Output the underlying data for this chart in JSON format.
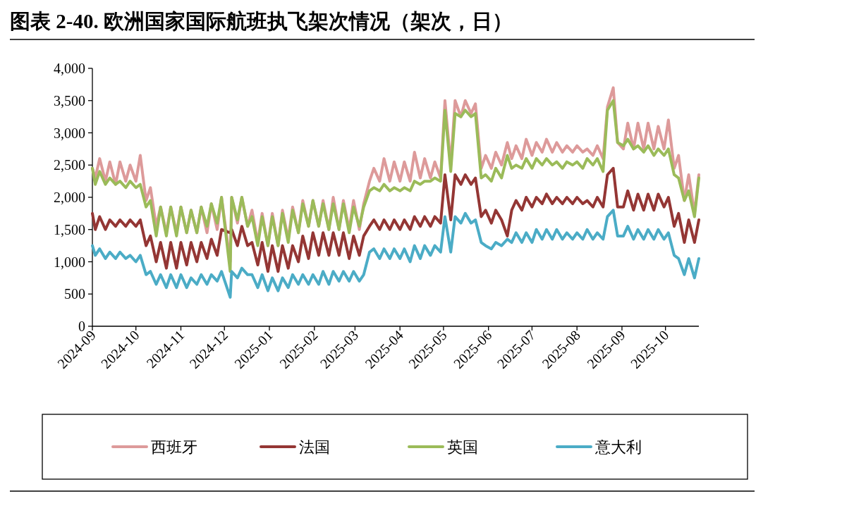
{
  "chart_data": {
    "type": "line",
    "title": "图表 2-40. 欧洲国家国际航班执飞架次情况（架次，日）",
    "x": [
      "2024-09-01",
      "2024-09-03",
      "2024-09-06",
      "2024-09-10",
      "2024-09-13",
      "2024-09-17",
      "2024-09-20",
      "2024-09-24",
      "2024-09-27",
      "2024-10-01",
      "2024-10-04",
      "2024-10-08",
      "2024-10-11",
      "2024-10-15",
      "2024-10-18",
      "2024-10-22",
      "2024-10-25",
      "2024-10-29",
      "2024-11-01",
      "2024-11-05",
      "2024-11-08",
      "2024-11-12",
      "2024-11-15",
      "2024-11-19",
      "2024-11-22",
      "2024-11-26",
      "2024-11-29",
      "2024-12-05",
      "2024-12-06",
      "2024-12-10",
      "2024-12-13",
      "2024-12-17",
      "2024-12-20",
      "2024-12-24",
      "2024-12-27",
      "2024-12-31",
      "2025-01-03",
      "2025-01-07",
      "2025-01-10",
      "2025-01-14",
      "2025-01-17",
      "2025-01-21",
      "2025-01-24",
      "2025-01-28",
      "2025-01-31",
      "2025-02-04",
      "2025-02-07",
      "2025-02-11",
      "2025-02-14",
      "2025-02-18",
      "2025-02-21",
      "2025-02-25",
      "2025-02-28",
      "2025-03-04",
      "2025-03-07",
      "2025-03-11",
      "2025-03-14",
      "2025-03-18",
      "2025-03-21",
      "2025-03-25",
      "2025-03-28",
      "2025-04-01",
      "2025-04-04",
      "2025-04-08",
      "2025-04-11",
      "2025-04-15",
      "2025-04-18",
      "2025-04-22",
      "2025-04-25",
      "2025-04-29",
      "2025-05-02",
      "2025-05-06",
      "2025-05-09",
      "2025-05-13",
      "2025-05-16",
      "2025-05-20",
      "2025-05-23",
      "2025-05-27",
      "2025-05-30",
      "2025-06-03",
      "2025-06-06",
      "2025-06-10",
      "2025-06-14",
      "2025-06-17",
      "2025-06-20",
      "2025-06-24",
      "2025-06-27",
      "2025-07-01",
      "2025-07-04",
      "2025-07-08",
      "2025-07-11",
      "2025-07-15",
      "2025-07-18",
      "2025-07-22",
      "2025-07-25",
      "2025-07-29",
      "2025-08-01",
      "2025-08-05",
      "2025-08-08",
      "2025-08-12",
      "2025-08-15",
      "2025-08-19",
      "2025-08-22",
      "2025-08-26",
      "2025-08-29",
      "2025-09-02",
      "2025-09-05",
      "2025-09-09",
      "2025-09-12",
      "2025-09-16",
      "2025-09-19",
      "2025-09-23",
      "2025-09-26",
      "2025-09-30",
      "2025-10-03",
      "2025-10-07",
      "2025-10-10",
      "2025-10-14",
      "2025-10-17",
      "2025-10-21",
      "2025-10-24"
    ],
    "series": [
      {
        "name": "西班牙",
        "color": "#dd9a9a",
        "values": [
          2450,
          2300,
          2600,
          2250,
          2550,
          2200,
          2550,
          2250,
          2500,
          2250,
          2650,
          1950,
          2150,
          1550,
          1850,
          1450,
          1850,
          1450,
          1850,
          1450,
          1800,
          1450,
          1850,
          1450,
          1900,
          1500,
          2000,
          1000,
          2000,
          1600,
          2000,
          1550,
          1800,
          1300,
          1750,
          1250,
          1750,
          1250,
          1800,
          1350,
          1850,
          1450,
          1950,
          1550,
          1950,
          1550,
          1950,
          1500,
          2000,
          1500,
          1950,
          1500,
          1950,
          1500,
          1900,
          2250,
          2450,
          2250,
          2600,
          2250,
          2550,
          2250,
          2550,
          2250,
          2700,
          2300,
          2600,
          2300,
          2550,
          2300,
          3500,
          2500,
          3500,
          3250,
          3500,
          3300,
          3450,
          2450,
          2650,
          2450,
          2700,
          2500,
          2850,
          2600,
          2800,
          2600,
          2900,
          2650,
          2850,
          2700,
          2900,
          2700,
          2850,
          2700,
          2800,
          2700,
          2800,
          2700,
          2750,
          2650,
          2800,
          2600,
          3400,
          3700,
          2850,
          2750,
          3150,
          2750,
          3150,
          2750,
          3150,
          2750,
          3100,
          2750,
          3200,
          2450,
          2650,
          1950,
          2350,
          1750,
          2350
        ]
      },
      {
        "name": "法国",
        "color": "#943634",
        "values": [
          1750,
          1500,
          1700,
          1500,
          1650,
          1550,
          1650,
          1550,
          1650,
          1550,
          1650,
          1250,
          1400,
          1000,
          1300,
          900,
          1300,
          900,
          1300,
          950,
          1300,
          1000,
          1300,
          1050,
          1350,
          1100,
          1500,
          1450,
          1500,
          1250,
          1550,
          1250,
          1300,
          950,
          1300,
          850,
          1250,
          850,
          1250,
          900,
          1250,
          1000,
          1400,
          1050,
          1450,
          1100,
          1450,
          1100,
          1450,
          1100,
          1450,
          1050,
          1400,
          1100,
          1400,
          1550,
          1650,
          1500,
          1650,
          1500,
          1650,
          1500,
          1650,
          1500,
          1700,
          1550,
          1700,
          1550,
          1700,
          1600,
          2350,
          1650,
          2350,
          2200,
          2350,
          2200,
          2300,
          1700,
          1800,
          1600,
          1800,
          1650,
          1400,
          1800,
          1950,
          1800,
          2000,
          1850,
          2000,
          1900,
          2050,
          1900,
          2000,
          1900,
          2000,
          1900,
          2000,
          1900,
          1950,
          1850,
          2000,
          1850,
          2350,
          2450,
          1850,
          1850,
          2100,
          1800,
          2050,
          1800,
          2050,
          1800,
          2050,
          1850,
          2000,
          1550,
          1750,
          1300,
          1650,
          1300,
          1650
        ]
      },
      {
        "name": "英国",
        "color": "#9bbb59",
        "values": [
          2450,
          2200,
          2400,
          2200,
          2300,
          2200,
          2250,
          2150,
          2250,
          2150,
          2200,
          1850,
          1950,
          1400,
          1850,
          1400,
          1850,
          1400,
          1850,
          1450,
          1800,
          1450,
          1850,
          1550,
          1900,
          1600,
          2000,
          850,
          2000,
          1650,
          2000,
          1550,
          1700,
          1250,
          1700,
          1250,
          1700,
          1250,
          1750,
          1300,
          1800,
          1450,
          1900,
          1550,
          1950,
          1550,
          1900,
          1500,
          1900,
          1500,
          1900,
          1450,
          1850,
          1550,
          1850,
          2100,
          2150,
          2100,
          2200,
          2100,
          2150,
          2100,
          2150,
          2100,
          2250,
          2200,
          2250,
          2250,
          2300,
          2250,
          3350,
          2400,
          3300,
          3250,
          3350,
          3250,
          3300,
          2300,
          2350,
          2250,
          2450,
          2300,
          2650,
          2450,
          2500,
          2450,
          2600,
          2450,
          2600,
          2500,
          2600,
          2500,
          2550,
          2450,
          2550,
          2500,
          2550,
          2450,
          2600,
          2500,
          2600,
          2400,
          3350,
          3500,
          2850,
          2800,
          2900,
          2750,
          2800,
          2700,
          2800,
          2650,
          2750,
          2650,
          2750,
          2350,
          2300,
          1950,
          2100,
          1700,
          2300
        ]
      },
      {
        "name": "意大利",
        "color": "#4bacc6",
        "values": [
          1250,
          1100,
          1200,
          1050,
          1150,
          1050,
          1150,
          1050,
          1100,
          1000,
          1100,
          800,
          850,
          650,
          800,
          600,
          800,
          600,
          800,
          600,
          750,
          650,
          800,
          650,
          800,
          700,
          850,
          450,
          850,
          750,
          900,
          800,
          800,
          600,
          800,
          550,
          750,
          550,
          750,
          600,
          800,
          650,
          800,
          650,
          800,
          650,
          850,
          650,
          850,
          700,
          850,
          700,
          850,
          700,
          800,
          1150,
          1200,
          1050,
          1200,
          1050,
          1200,
          1050,
          1200,
          1000,
          1250,
          1050,
          1250,
          1100,
          1250,
          1150,
          1700,
          1150,
          1700,
          1600,
          1750,
          1600,
          1650,
          1300,
          1250,
          1200,
          1300,
          1250,
          1350,
          1300,
          1450,
          1300,
          1450,
          1300,
          1500,
          1350,
          1500,
          1350,
          1500,
          1350,
          1450,
          1350,
          1450,
          1350,
          1500,
          1350,
          1450,
          1350,
          1700,
          1800,
          1400,
          1400,
          1550,
          1350,
          1500,
          1350,
          1500,
          1350,
          1500,
          1350,
          1450,
          1100,
          1050,
          800,
          1050,
          750,
          1050
        ]
      }
    ],
    "xlim": [
      "2024-09-01",
      "2025-10-24"
    ],
    "xticks": [
      {
        "value": "2024-09-01",
        "label": "2024-09"
      },
      {
        "value": "2024-10-01",
        "label": "2024-10"
      },
      {
        "value": "2024-11-01",
        "label": "2024-11"
      },
      {
        "value": "2024-12-01",
        "label": "2024-12"
      },
      {
        "value": "2025-01-01",
        "label": "2025-01"
      },
      {
        "value": "2025-02-01",
        "label": "2025-02"
      },
      {
        "value": "2025-03-01",
        "label": "2025-03"
      },
      {
        "value": "2025-04-01",
        "label": "2025-04"
      },
      {
        "value": "2025-05-01",
        "label": "2025-05"
      },
      {
        "value": "2025-06-01",
        "label": "2025-06"
      },
      {
        "value": "2025-07-01",
        "label": "2025-07"
      },
      {
        "value": "2025-08-01",
        "label": "2025-08"
      },
      {
        "value": "2025-09-01",
        "label": "2025-09"
      },
      {
        "value": "2025-10-01",
        "label": "2025-10"
      }
    ],
    "ylim": [
      0,
      4000
    ],
    "yticks": [
      0,
      {
        "value": 500,
        "label": "500"
      },
      {
        "value": 1000,
        "label": "1,000"
      },
      {
        "value": 1500,
        "label": "1,500"
      },
      {
        "value": 2000,
        "label": "2,000"
      },
      {
        "value": 2500,
        "label": "2,500"
      },
      {
        "value": 3000,
        "label": "3,000"
      },
      {
        "value": 3500,
        "label": "3,500"
      },
      {
        "value": 4000,
        "label": "4,000"
      }
    ],
    "legend": "bottom"
  }
}
